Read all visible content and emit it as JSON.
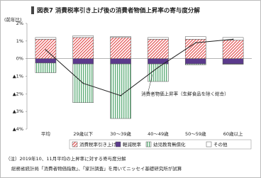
{
  "chart_data": {
    "type": "bar",
    "title": "図表7 消費税率引き上げ後の消費者物価上昇率の寄与度分解",
    "y_label": "(前年比)",
    "categories": [
      "平均",
      "29歳以下",
      "30～39歳",
      "40～49歳",
      "50～59歳",
      "60歳以上"
    ],
    "series": [
      {
        "name": "消費税率引き上げ",
        "color": "#e03c3c",
        "pattern": "diagonal",
        "values": [
          1.1,
          1.2,
          1.2,
          1.1,
          1.1,
          1.05
        ]
      },
      {
        "name": "軽減税率",
        "color": "#5b3a8c",
        "pattern": "solid",
        "values": [
          -0.25,
          -0.3,
          -0.3,
          -0.3,
          -0.3,
          -0.3
        ]
      },
      {
        "name": "幼児教育無償化",
        "color": "#3a9a5a",
        "pattern": "vertical",
        "values": [
          -0.55,
          -2.2,
          -3.1,
          -1.0,
          -0.05,
          -0.02
        ]
      },
      {
        "name": "その他",
        "color": "#ffffff",
        "pattern": "solid",
        "values": [
          0.1,
          0.1,
          0.05,
          0.1,
          0.15,
          0.15
        ]
      }
    ],
    "line": {
      "type": "line",
      "name": "消費者物価上昇率（生鮮食品を除く総合）",
      "color": "#222222",
      "values": [
        0.5,
        -1.4,
        -2.1,
        -0.5,
        0.9,
        1.1
      ]
    },
    "ylim": [
      -4,
      2
    ],
    "yticks": [
      {
        "value": -4,
        "label": "▲4%"
      },
      {
        "value": -3,
        "label": "▲3%"
      },
      {
        "value": -2,
        "label": "▲2%"
      },
      {
        "value": -1,
        "label": "▲1%"
      },
      {
        "value": 0,
        "label": "0%"
      },
      {
        "value": 1,
        "label": "1%"
      },
      {
        "value": 2,
        "label": "2%"
      }
    ],
    "legend": "bottom",
    "notes": [
      "（注）2019年10、11月平均の上昇率に対する寄与度分解",
      "総務省統計局「消費者物価指数」、「家計調査」を用いてニッセイ基礎研究所が試算"
    ]
  }
}
